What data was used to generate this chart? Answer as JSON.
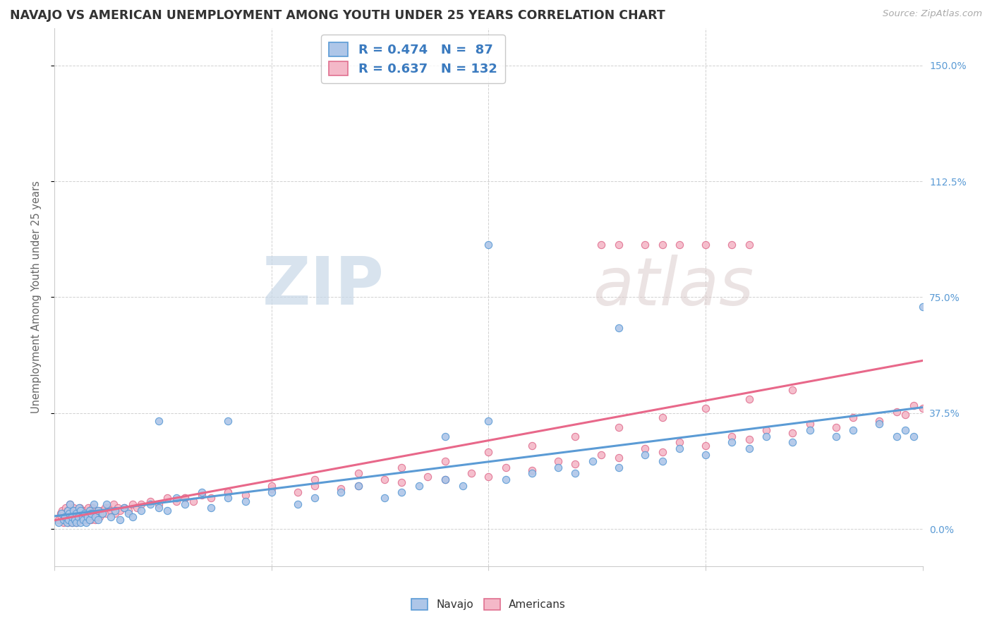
{
  "title": "NAVAJO VS AMERICAN UNEMPLOYMENT AMONG YOUTH UNDER 25 YEARS CORRELATION CHART",
  "source": "Source: ZipAtlas.com",
  "ylabel": "Unemployment Among Youth under 25 years",
  "ytick_labels": [
    "0.0%",
    "37.5%",
    "75.0%",
    "112.5%",
    "150.0%"
  ],
  "ytick_values": [
    0.0,
    0.375,
    0.75,
    1.125,
    1.5
  ],
  "xlim": [
    0.0,
    1.0
  ],
  "ylim": [
    -0.12,
    1.62
  ],
  "navajo_R": 0.474,
  "navajo_N": 87,
  "americans_R": 0.637,
  "americans_N": 132,
  "navajo_color": "#aec6e8",
  "navajo_edge": "#5b9bd5",
  "americans_color": "#f4b8c8",
  "americans_edge": "#e07090",
  "navajo_line_color": "#5b9bd5",
  "americans_line_color": "#e8688a",
  "background_color": "#ffffff",
  "grid_color": "#cccccc",
  "title_color": "#333333",
  "source_color": "#aaaaaa",
  "right_tick_color": "#5b9bd5",
  "legend_text_color": "#3a7abf",
  "marker_size": 55,
  "watermark_zip": "ZIP",
  "watermark_atlas": "atlas",
  "navajo_points_x": [
    0.005,
    0.008,
    0.01,
    0.012,
    0.014,
    0.015,
    0.016,
    0.017,
    0.018,
    0.02,
    0.02,
    0.022,
    0.023,
    0.025,
    0.025,
    0.027,
    0.028,
    0.03,
    0.03,
    0.032,
    0.033,
    0.035,
    0.036,
    0.038,
    0.04,
    0.04,
    0.042,
    0.045,
    0.047,
    0.05,
    0.05,
    0.055,
    0.06,
    0.065,
    0.07,
    0.075,
    0.08,
    0.085,
    0.09,
    0.1,
    0.11,
    0.12,
    0.13,
    0.14,
    0.15,
    0.17,
    0.18,
    0.2,
    0.22,
    0.25,
    0.28,
    0.3,
    0.33,
    0.35,
    0.38,
    0.4,
    0.42,
    0.45,
    0.47,
    0.5,
    0.52,
    0.55,
    0.58,
    0.6,
    0.62,
    0.65,
    0.68,
    0.7,
    0.72,
    0.75,
    0.78,
    0.8,
    0.82,
    0.85,
    0.87,
    0.9,
    0.92,
    0.95,
    0.97,
    0.98,
    0.99,
    1.0,
    0.12,
    0.2,
    0.45,
    0.5,
    0.65
  ],
  "navajo_points_y": [
    0.02,
    0.05,
    0.03,
    0.04,
    0.02,
    0.06,
    0.03,
    0.05,
    0.08,
    0.02,
    0.04,
    0.06,
    0.03,
    0.05,
    0.02,
    0.04,
    0.07,
    0.02,
    0.06,
    0.04,
    0.03,
    0.05,
    0.02,
    0.04,
    0.06,
    0.03,
    0.05,
    0.08,
    0.04,
    0.03,
    0.06,
    0.05,
    0.08,
    0.04,
    0.06,
    0.03,
    0.07,
    0.05,
    0.04,
    0.06,
    0.08,
    0.07,
    0.06,
    0.1,
    0.08,
    0.12,
    0.07,
    0.1,
    0.09,
    0.12,
    0.08,
    0.1,
    0.12,
    0.14,
    0.1,
    0.12,
    0.14,
    0.16,
    0.14,
    0.92,
    0.16,
    0.18,
    0.2,
    0.18,
    0.22,
    0.2,
    0.24,
    0.22,
    0.26,
    0.24,
    0.28,
    0.26,
    0.3,
    0.28,
    0.32,
    0.3,
    0.32,
    0.34,
    0.3,
    0.32,
    0.3,
    0.72,
    0.35,
    0.35,
    0.3,
    0.35,
    0.65
  ],
  "americans_points_x": [
    0.005,
    0.007,
    0.008,
    0.009,
    0.01,
    0.01,
    0.012,
    0.013,
    0.014,
    0.015,
    0.015,
    0.016,
    0.017,
    0.018,
    0.018,
    0.019,
    0.02,
    0.02,
    0.021,
    0.022,
    0.022,
    0.023,
    0.024,
    0.025,
    0.025,
    0.026,
    0.027,
    0.028,
    0.029,
    0.03,
    0.03,
    0.031,
    0.032,
    0.033,
    0.034,
    0.035,
    0.036,
    0.037,
    0.038,
    0.039,
    0.04,
    0.041,
    0.042,
    0.043,
    0.044,
    0.045,
    0.046,
    0.047,
    0.048,
    0.05,
    0.052,
    0.054,
    0.056,
    0.058,
    0.06,
    0.062,
    0.065,
    0.068,
    0.07,
    0.073,
    0.075,
    0.08,
    0.085,
    0.09,
    0.095,
    0.1,
    0.11,
    0.12,
    0.13,
    0.14,
    0.15,
    0.16,
    0.17,
    0.18,
    0.2,
    0.22,
    0.25,
    0.28,
    0.3,
    0.33,
    0.35,
    0.38,
    0.4,
    0.43,
    0.45,
    0.48,
    0.5,
    0.52,
    0.55,
    0.58,
    0.6,
    0.63,
    0.65,
    0.68,
    0.7,
    0.72,
    0.75,
    0.78,
    0.8,
    0.82,
    0.85,
    0.87,
    0.9,
    0.92,
    0.95,
    0.97,
    0.98,
    0.99,
    1.0,
    0.63,
    0.65,
    0.68,
    0.7,
    0.72,
    0.75,
    0.78,
    0.8,
    0.15,
    0.2,
    0.25,
    0.3,
    0.35,
    0.4,
    0.45,
    0.5,
    0.55,
    0.6,
    0.65,
    0.7,
    0.75,
    0.8,
    0.85
  ],
  "americans_points_y": [
    0.03,
    0.05,
    0.04,
    0.06,
    0.02,
    0.05,
    0.03,
    0.07,
    0.04,
    0.02,
    0.06,
    0.04,
    0.03,
    0.05,
    0.08,
    0.04,
    0.02,
    0.06,
    0.04,
    0.03,
    0.07,
    0.05,
    0.04,
    0.02,
    0.06,
    0.04,
    0.03,
    0.05,
    0.07,
    0.03,
    0.05,
    0.04,
    0.06,
    0.03,
    0.05,
    0.04,
    0.06,
    0.03,
    0.05,
    0.07,
    0.04,
    0.06,
    0.03,
    0.05,
    0.07,
    0.04,
    0.06,
    0.03,
    0.05,
    0.06,
    0.04,
    0.06,
    0.05,
    0.07,
    0.05,
    0.07,
    0.06,
    0.08,
    0.05,
    0.07,
    0.06,
    0.07,
    0.06,
    0.08,
    0.07,
    0.08,
    0.09,
    0.08,
    0.1,
    0.09,
    0.1,
    0.09,
    0.11,
    0.1,
    0.12,
    0.11,
    0.13,
    0.12,
    0.14,
    0.13,
    0.14,
    0.16,
    0.15,
    0.17,
    0.16,
    0.18,
    0.17,
    0.2,
    0.19,
    0.22,
    0.21,
    0.24,
    0.23,
    0.26,
    0.25,
    0.28,
    0.27,
    0.3,
    0.29,
    0.32,
    0.31,
    0.34,
    0.33,
    0.36,
    0.35,
    0.38,
    0.37,
    0.4,
    0.39,
    0.92,
    0.92,
    0.92,
    0.92,
    0.92,
    0.92,
    0.92,
    0.92,
    0.1,
    0.12,
    0.14,
    0.16,
    0.18,
    0.2,
    0.22,
    0.25,
    0.27,
    0.3,
    0.33,
    0.36,
    0.39,
    0.42,
    0.45
  ]
}
